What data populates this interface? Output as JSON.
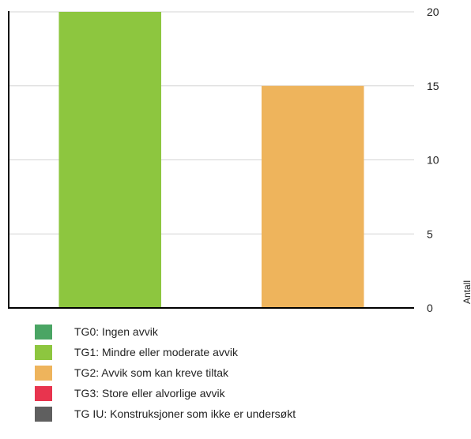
{
  "chart_data": {
    "type": "bar",
    "categories": [
      "TG1: Mindre eller moderate avvik",
      "TG2: Avvik som kan kreve tiltak"
    ],
    "values": [
      20,
      15
    ],
    "colors": [
      "#8dc63f",
      "#eeb45c"
    ],
    "ylabel": "Antall",
    "ylim": [
      0,
      20
    ],
    "yticks": [
      0,
      5,
      10,
      15,
      20
    ],
    "y_axis_side": "right",
    "grid": true,
    "legend_position": "bottom",
    "legend": [
      {
        "label": "TG0: Ingen avvik",
        "color": "#4aa564"
      },
      {
        "label": "TG1: Mindre eller moderate avvik",
        "color": "#8dc63f"
      },
      {
        "label": "TG2: Avvik som kan kreve tiltak",
        "color": "#eeb45c"
      },
      {
        "label": "TG3: Store eller alvorlige avvik",
        "color": "#e8344e"
      },
      {
        "label": "TG IU: Konstruksjoner som ikke er undersøkt",
        "color": "#5f5f5f"
      }
    ]
  }
}
